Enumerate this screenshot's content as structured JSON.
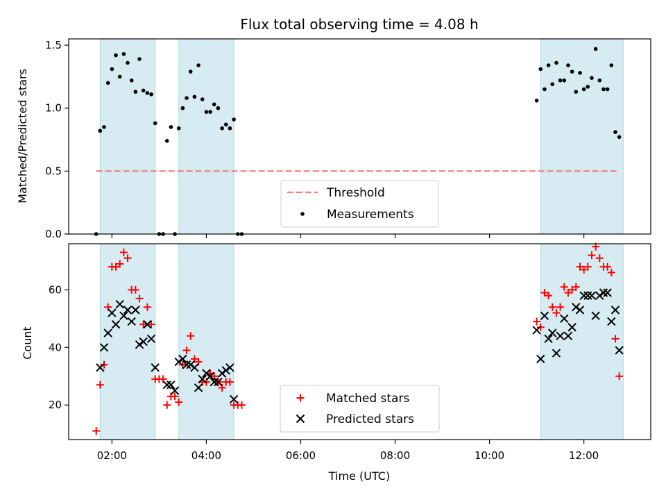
{
  "chart_data": [
    {
      "type": "scatter",
      "title": "Flux total observing time = 4.08 h",
      "xlabel": "",
      "ylabel": "Matched/Predicted stars",
      "ylim": [
        0,
        1.55
      ],
      "yticks": [
        "0.0",
        "0.5",
        "1.0",
        "1.5"
      ],
      "ytick_values": [
        0,
        0.5,
        1.0,
        1.5
      ],
      "grid": false,
      "legend_position": "bottom-center",
      "shaded_intervals": [
        [
          "01:45",
          "02:55"
        ],
        [
          "03:25",
          "04:35"
        ],
        [
          "11:05",
          "12:50"
        ]
      ],
      "threshold": {
        "name": "Threshold",
        "value": 0.5,
        "x_range": [
          "01:40",
          "12:45"
        ],
        "color": "#f08080"
      },
      "series": [
        {
          "name": "Measurements",
          "color": "#000000",
          "marker": "dot",
          "points": [
            [
              "01:40",
              0.0
            ],
            [
              "01:45",
              0.82
            ],
            [
              "01:50",
              0.85
            ],
            [
              "01:55",
              1.2
            ],
            [
              "02:00",
              1.31
            ],
            [
              "02:05",
              1.42
            ],
            [
              "02:10",
              1.25
            ],
            [
              "02:15",
              1.43
            ],
            [
              "02:20",
              1.36
            ],
            [
              "02:25",
              1.22
            ],
            [
              "02:30",
              1.13
            ],
            [
              "02:35",
              1.39
            ],
            [
              "02:40",
              1.14
            ],
            [
              "02:45",
              1.12
            ],
            [
              "02:50",
              1.11
            ],
            [
              "02:55",
              0.88
            ],
            [
              "03:00",
              0.0
            ],
            [
              "03:05",
              0.0
            ],
            [
              "03:10",
              0.74
            ],
            [
              "03:15",
              0.85
            ],
            [
              "03:20",
              0.0
            ],
            [
              "03:25",
              0.84
            ],
            [
              "03:30",
              1.0
            ],
            [
              "03:35",
              1.08
            ],
            [
              "03:40",
              1.29
            ],
            [
              "03:45",
              1.09
            ],
            [
              "03:50",
              1.34
            ],
            [
              "03:55",
              1.07
            ],
            [
              "04:00",
              0.97
            ],
            [
              "04:05",
              0.97
            ],
            [
              "04:10",
              1.03
            ],
            [
              "04:15",
              1.0
            ],
            [
              "04:20",
              0.84
            ],
            [
              "04:25",
              0.87
            ],
            [
              "04:30",
              0.84
            ],
            [
              "04:35",
              0.91
            ],
            [
              "04:40",
              0.0
            ],
            [
              "04:45",
              0.0
            ],
            [
              "11:00",
              1.06
            ],
            [
              "11:05",
              1.31
            ],
            [
              "11:10",
              1.15
            ],
            [
              "11:15",
              1.34
            ],
            [
              "11:20",
              1.19
            ],
            [
              "11:25",
              1.36
            ],
            [
              "11:30",
              1.22
            ],
            [
              "11:35",
              1.22
            ],
            [
              "11:40",
              1.34
            ],
            [
              "11:45",
              1.29
            ],
            [
              "11:50",
              1.13
            ],
            [
              "11:55",
              1.28
            ],
            [
              "12:00",
              1.15
            ],
            [
              "12:05",
              1.17
            ],
            [
              "12:10",
              1.24
            ],
            [
              "12:15",
              1.47
            ],
            [
              "12:20",
              1.22
            ],
            [
              "12:25",
              1.15
            ],
            [
              "12:30",
              1.15
            ],
            [
              "12:35",
              1.34
            ],
            [
              "12:40",
              0.81
            ],
            [
              "12:45",
              0.77
            ]
          ]
        }
      ]
    },
    {
      "type": "scatter",
      "title": "",
      "xlabel": "Time (UTC)",
      "ylabel": "Count",
      "ylim": [
        8,
        76
      ],
      "yticks": [
        "20",
        "40",
        "60"
      ],
      "ytick_values": [
        20,
        40,
        60
      ],
      "xlim": [
        "01:05",
        "13:25"
      ],
      "xticks": [
        "02:00",
        "04:00",
        "06:00",
        "08:00",
        "10:00",
        "12:00"
      ],
      "grid": false,
      "legend_position": "bottom-center",
      "shaded_intervals": [
        [
          "01:45",
          "02:55"
        ],
        [
          "03:25",
          "04:35"
        ],
        [
          "11:05",
          "12:50"
        ]
      ],
      "series": [
        {
          "name": "Matched stars",
          "color": "#ff0000",
          "marker": "plus",
          "points": [
            [
              "01:40",
              11
            ],
            [
              "01:45",
              27
            ],
            [
              "01:50",
              34
            ],
            [
              "01:55",
              54
            ],
            [
              "02:00",
              68
            ],
            [
              "02:05",
              68
            ],
            [
              "02:10",
              69
            ],
            [
              "02:15",
              73
            ],
            [
              "02:20",
              71
            ],
            [
              "02:25",
              60
            ],
            [
              "02:30",
              60
            ],
            [
              "02:35",
              57
            ],
            [
              "02:40",
              48
            ],
            [
              "02:45",
              54
            ],
            [
              "02:50",
              48
            ],
            [
              "02:55",
              29
            ],
            [
              "03:00",
              29
            ],
            [
              "03:05",
              29
            ],
            [
              "03:10",
              20
            ],
            [
              "03:15",
              23
            ],
            [
              "03:20",
              23
            ],
            [
              "03:25",
              21
            ],
            [
              "03:30",
              34
            ],
            [
              "03:35",
              39
            ],
            [
              "03:40",
              44
            ],
            [
              "03:45",
              36
            ],
            [
              "03:50",
              35
            ],
            [
              "03:55",
              28
            ],
            [
              "04:00",
              28
            ],
            [
              "04:05",
              31
            ],
            [
              "04:10",
              30
            ],
            [
              "04:15",
              28
            ],
            [
              "04:20",
              26
            ],
            [
              "04:25",
              28
            ],
            [
              "04:30",
              28
            ],
            [
              "04:35",
              20
            ],
            [
              "04:40",
              20
            ],
            [
              "04:45",
              20
            ],
            [
              "11:00",
              49
            ],
            [
              "11:05",
              47
            ],
            [
              "11:10",
              59
            ],
            [
              "11:15",
              58
            ],
            [
              "11:20",
              54
            ],
            [
              "11:25",
              52
            ],
            [
              "11:30",
              54
            ],
            [
              "11:35",
              61
            ],
            [
              "11:40",
              59
            ],
            [
              "11:45",
              60
            ],
            [
              "11:50",
              61
            ],
            [
              "11:55",
              68
            ],
            [
              "12:00",
              67
            ],
            [
              "12:05",
              68
            ],
            [
              "12:10",
              72
            ],
            [
              "12:15",
              75
            ],
            [
              "12:20",
              71
            ],
            [
              "12:25",
              68
            ],
            [
              "12:30",
              68
            ],
            [
              "12:35",
              66
            ],
            [
              "12:40",
              43
            ],
            [
              "12:45",
              30
            ]
          ]
        },
        {
          "name": "Predicted stars",
          "color": "#000000",
          "marker": "x",
          "points": [
            [
              "01:45",
              33
            ],
            [
              "01:50",
              40
            ],
            [
              "01:55",
              45
            ],
            [
              "02:00",
              52
            ],
            [
              "02:05",
              48
            ],
            [
              "02:10",
              55
            ],
            [
              "02:15",
              51
            ],
            [
              "02:20",
              53
            ],
            [
              "02:25",
              49
            ],
            [
              "02:30",
              53
            ],
            [
              "02:35",
              41
            ],
            [
              "02:40",
              42
            ],
            [
              "02:45",
              48
            ],
            [
              "02:50",
              43
            ],
            [
              "02:55",
              33
            ],
            [
              "03:10",
              27
            ],
            [
              "03:15",
              27
            ],
            [
              "03:20",
              25
            ],
            [
              "03:25",
              35
            ],
            [
              "03:30",
              36
            ],
            [
              "03:35",
              34
            ],
            [
              "03:40",
              34
            ],
            [
              "03:45",
              33
            ],
            [
              "03:50",
              26
            ],
            [
              "03:55",
              29
            ],
            [
              "04:00",
              31
            ],
            [
              "04:05",
              30
            ],
            [
              "04:10",
              28
            ],
            [
              "04:15",
              28
            ],
            [
              "04:20",
              31
            ],
            [
              "04:25",
              32
            ],
            [
              "04:30",
              33
            ],
            [
              "04:35",
              22
            ],
            [
              "11:00",
              46
            ],
            [
              "11:05",
              36
            ],
            [
              "11:10",
              51
            ],
            [
              "11:15",
              43
            ],
            [
              "11:20",
              45
            ],
            [
              "11:25",
              38
            ],
            [
              "11:30",
              44
            ],
            [
              "11:35",
              50
            ],
            [
              "11:40",
              44
            ],
            [
              "11:45",
              47
            ],
            [
              "11:50",
              54
            ],
            [
              "11:55",
              53
            ],
            [
              "12:00",
              58
            ],
            [
              "12:05",
              58
            ],
            [
              "12:10",
              58
            ],
            [
              "12:15",
              51
            ],
            [
              "12:20",
              58
            ],
            [
              "12:25",
              59
            ],
            [
              "12:30",
              59
            ],
            [
              "12:35",
              49
            ],
            [
              "12:40",
              53
            ],
            [
              "12:45",
              39
            ]
          ]
        }
      ]
    }
  ],
  "colors": {
    "shade_fill": "#add8e6",
    "shade_edge": "#add8e6"
  }
}
